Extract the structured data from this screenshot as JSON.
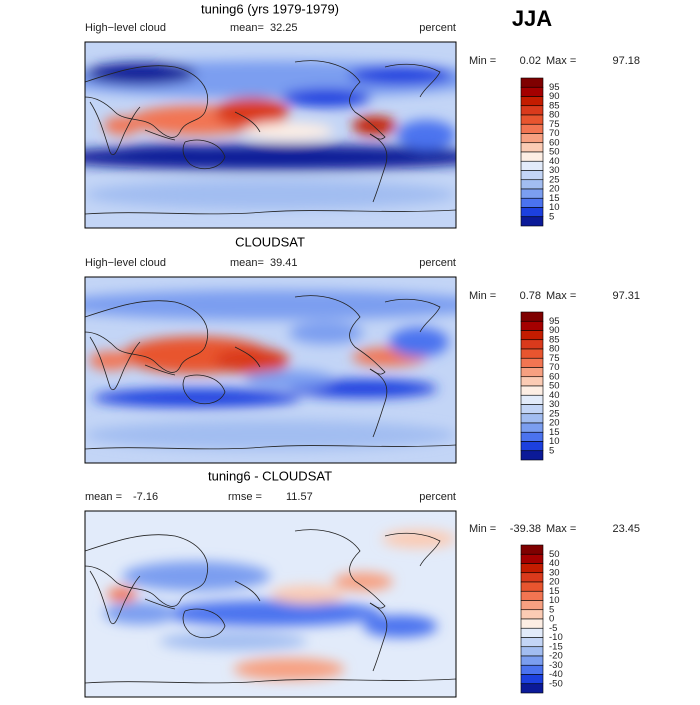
{
  "season": "JJA",
  "colorbar_colors": [
    "#7f0000",
    "#a40000",
    "#c41c00",
    "#da3a1c",
    "#e8552f",
    "#f27552",
    "#f7a081",
    "#fbcbb4",
    "#fdeee4",
    "#e2ebfa",
    "#c3d5f6",
    "#a2bdf1",
    "#7b9ef0",
    "#4b73ef",
    "#1c40df",
    "#0b1a98"
  ],
  "panels": [
    {
      "title": "tuning6 (yrs 1979-1979)",
      "left_label": "High−level cloud",
      "stat1_label": "mean=",
      "stat1": 32.25,
      "units": "percent",
      "min_label": "Min =",
      "min": 0.02,
      "max_label": "Max =",
      "max": 97.18,
      "levels": [
        95,
        90,
        85,
        80,
        75,
        70,
        60,
        50,
        40,
        30,
        25,
        20,
        15,
        10,
        5
      ]
    },
    {
      "title": "CLOUDSAT",
      "left_label": "High−level cloud",
      "stat1_label": "mean=",
      "stat1": 39.41,
      "units": "percent",
      "min_label": "Min =",
      "min": 0.78,
      "max_label": "Max =",
      "max": 97.31,
      "levels": [
        95,
        90,
        85,
        80,
        75,
        70,
        60,
        50,
        40,
        30,
        25,
        20,
        15,
        10,
        5
      ]
    },
    {
      "title": "tuning6 - CLOUDSAT",
      "stat1_label": "mean =",
      "stat1": -7.16,
      "stat2_label": "rmse =",
      "stat2": 11.57,
      "units": "percent",
      "min_label": "Min =",
      "min": -39.38,
      "max_label": "Max =",
      "max": 23.45,
      "levels": [
        50,
        40,
        30,
        20,
        15,
        10,
        5,
        0,
        -5,
        -10,
        -15,
        -20,
        -30,
        -40,
        -50
      ]
    }
  ]
}
